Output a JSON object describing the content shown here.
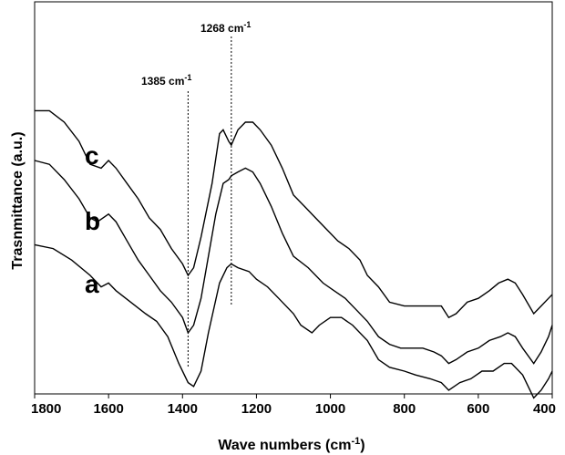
{
  "chart_data": {
    "type": "line",
    "xlabel": "Wave numbers (cm",
    "xlabel_sup": "-1",
    "xlabel_close": ")",
    "ylabel": "Trasnmittance (a.u.)",
    "xlim": [
      1800,
      400
    ],
    "x_reversed": true,
    "y_ticks_shown": false,
    "grid": false,
    "x_ticks": [
      1800,
      1600,
      1400,
      1200,
      1000,
      800,
      600,
      400
    ],
    "annotations": [
      {
        "x": 1385,
        "text": "1385 cm",
        "sup": "-1"
      },
      {
        "x": 1268,
        "text": "1268 cm",
        "sup": "-1"
      }
    ],
    "series": [
      {
        "name": "a",
        "points": [
          [
            1800,
            52
          ],
          [
            1750,
            53
          ],
          [
            1700,
            56
          ],
          [
            1650,
            60
          ],
          [
            1620,
            63
          ],
          [
            1600,
            62
          ],
          [
            1580,
            64
          ],
          [
            1540,
            67
          ],
          [
            1500,
            70
          ],
          [
            1470,
            72
          ],
          [
            1440,
            76
          ],
          [
            1410,
            83
          ],
          [
            1385,
            88
          ],
          [
            1370,
            89
          ],
          [
            1350,
            85
          ],
          [
            1330,
            75
          ],
          [
            1300,
            62
          ],
          [
            1280,
            58
          ],
          [
            1268,
            57
          ],
          [
            1250,
            58
          ],
          [
            1220,
            59
          ],
          [
            1200,
            61
          ],
          [
            1170,
            63
          ],
          [
            1140,
            66
          ],
          [
            1100,
            70
          ],
          [
            1080,
            73
          ],
          [
            1050,
            75
          ],
          [
            1030,
            73
          ],
          [
            1000,
            71
          ],
          [
            970,
            71
          ],
          [
            940,
            73
          ],
          [
            900,
            77
          ],
          [
            870,
            82
          ],
          [
            840,
            84
          ],
          [
            800,
            85
          ],
          [
            770,
            86
          ],
          [
            730,
            87
          ],
          [
            700,
            88
          ],
          [
            680,
            90
          ],
          [
            650,
            88
          ],
          [
            620,
            87
          ],
          [
            590,
            85
          ],
          [
            560,
            85
          ],
          [
            530,
            83
          ],
          [
            510,
            83
          ],
          [
            480,
            86
          ],
          [
            450,
            92
          ],
          [
            430,
            90
          ],
          [
            410,
            87
          ],
          [
            400,
            85
          ]
        ]
      },
      {
        "name": "b",
        "points": [
          [
            1800,
            30
          ],
          [
            1760,
            31
          ],
          [
            1720,
            35
          ],
          [
            1680,
            40
          ],
          [
            1650,
            45
          ],
          [
            1630,
            46
          ],
          [
            1600,
            44
          ],
          [
            1580,
            46
          ],
          [
            1550,
            51
          ],
          [
            1520,
            56
          ],
          [
            1490,
            60
          ],
          [
            1460,
            64
          ],
          [
            1430,
            67
          ],
          [
            1400,
            71
          ],
          [
            1385,
            75
          ],
          [
            1370,
            73
          ],
          [
            1350,
            66
          ],
          [
            1330,
            55
          ],
          [
            1310,
            44
          ],
          [
            1290,
            36
          ],
          [
            1275,
            35
          ],
          [
            1268,
            34
          ],
          [
            1250,
            33
          ],
          [
            1230,
            32
          ],
          [
            1210,
            33
          ],
          [
            1190,
            36
          ],
          [
            1160,
            42
          ],
          [
            1130,
            49
          ],
          [
            1100,
            55
          ],
          [
            1060,
            58
          ],
          [
            1020,
            62
          ],
          [
            990,
            64
          ],
          [
            960,
            66
          ],
          [
            930,
            69
          ],
          [
            900,
            72
          ],
          [
            870,
            76
          ],
          [
            840,
            78
          ],
          [
            810,
            79
          ],
          [
            780,
            79
          ],
          [
            750,
            79
          ],
          [
            720,
            80
          ],
          [
            700,
            81
          ],
          [
            680,
            83
          ],
          [
            660,
            82
          ],
          [
            630,
            80
          ],
          [
            600,
            79
          ],
          [
            570,
            77
          ],
          [
            540,
            76
          ],
          [
            520,
            75
          ],
          [
            500,
            76
          ],
          [
            480,
            79
          ],
          [
            450,
            83
          ],
          [
            430,
            80
          ],
          [
            410,
            76
          ],
          [
            400,
            73
          ]
        ]
      },
      {
        "name": "c",
        "points": [
          [
            1800,
            17
          ],
          [
            1760,
            17
          ],
          [
            1720,
            20
          ],
          [
            1680,
            25
          ],
          [
            1650,
            31
          ],
          [
            1620,
            32
          ],
          [
            1600,
            30
          ],
          [
            1580,
            32
          ],
          [
            1550,
            36
          ],
          [
            1520,
            40
          ],
          [
            1490,
            45
          ],
          [
            1460,
            48
          ],
          [
            1430,
            53
          ],
          [
            1400,
            57
          ],
          [
            1385,
            60
          ],
          [
            1370,
            58
          ],
          [
            1350,
            50
          ],
          [
            1320,
            36
          ],
          [
            1300,
            23
          ],
          [
            1290,
            22
          ],
          [
            1275,
            25
          ],
          [
            1268,
            26
          ],
          [
            1250,
            22
          ],
          [
            1230,
            20
          ],
          [
            1210,
            20
          ],
          [
            1190,
            22
          ],
          [
            1160,
            26
          ],
          [
            1130,
            32
          ],
          [
            1100,
            39
          ],
          [
            1070,
            42
          ],
          [
            1040,
            45
          ],
          [
            1010,
            48
          ],
          [
            980,
            51
          ],
          [
            950,
            53
          ],
          [
            920,
            56
          ],
          [
            900,
            60
          ],
          [
            870,
            63
          ],
          [
            840,
            67
          ],
          [
            800,
            68
          ],
          [
            770,
            68
          ],
          [
            740,
            68
          ],
          [
            720,
            68
          ],
          [
            700,
            68
          ],
          [
            680,
            71
          ],
          [
            660,
            70
          ],
          [
            630,
            67
          ],
          [
            600,
            66
          ],
          [
            570,
            64
          ],
          [
            545,
            62
          ],
          [
            520,
            61
          ],
          [
            500,
            62
          ],
          [
            480,
            65
          ],
          [
            450,
            70
          ],
          [
            430,
            68
          ],
          [
            410,
            66
          ],
          [
            400,
            65
          ]
        ]
      }
    ]
  }
}
